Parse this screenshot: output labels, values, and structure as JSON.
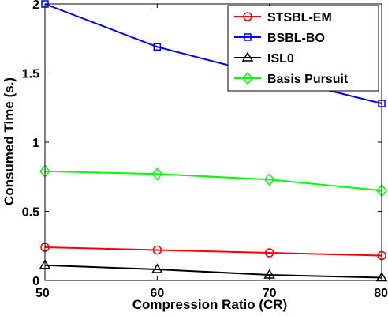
{
  "chart_data": {
    "type": "line",
    "xlabel": "Compression Ratio (CR)",
    "ylabel": "Consumed Time (s.)",
    "x": [
      50,
      60,
      70,
      80
    ],
    "xlim": [
      50,
      80
    ],
    "ylim": [
      0,
      2
    ],
    "xticks": [
      50,
      60,
      70,
      80
    ],
    "xtick_labels": [
      "50",
      "60",
      "70",
      "80"
    ],
    "yticks": [
      0,
      0.5,
      1,
      1.5,
      2
    ],
    "ytick_labels": [
      "0",
      "0.5",
      "1",
      "1.5",
      "2"
    ],
    "grid": false,
    "legend_position": "top-right",
    "series": [
      {
        "name": "STSBL-EM",
        "color": "#ff0000",
        "marker": "circle",
        "values": [
          0.24,
          0.22,
          0.2,
          0.18
        ]
      },
      {
        "name": "BSBL-BO",
        "color": "#0000ff",
        "marker": "square",
        "values": [
          2.0,
          1.69,
          1.48,
          1.28
        ]
      },
      {
        "name": "ISL0",
        "color": "#000000",
        "marker": "triangle",
        "values": [
          0.11,
          0.08,
          0.04,
          0.02
        ]
      },
      {
        "name": "Basis Pursuit",
        "color": "#00ff00",
        "marker": "diamond",
        "values": [
          0.79,
          0.77,
          0.73,
          0.65
        ]
      }
    ]
  }
}
